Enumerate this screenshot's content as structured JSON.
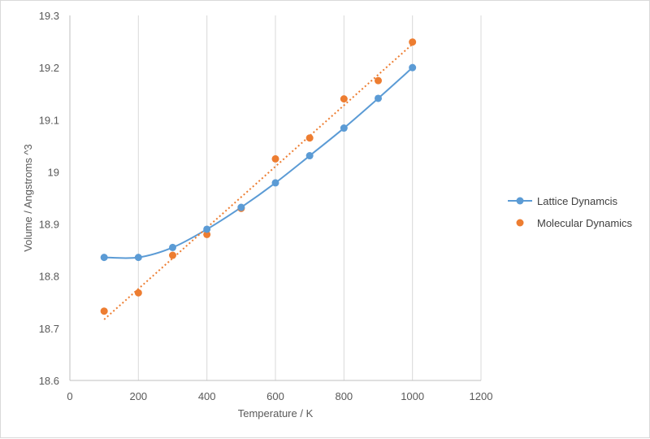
{
  "chart_data": {
    "type": "scatter",
    "title": "",
    "xlabel": "Temperature / K",
    "ylabel": "Volume / Angstroms ^3",
    "xlim": [
      0,
      1200
    ],
    "ylim": [
      18.6,
      19.3
    ],
    "x_ticks": [
      0,
      200,
      400,
      600,
      800,
      1000,
      1200
    ],
    "y_ticks": [
      18.6,
      18.7,
      18.8,
      18.9,
      19.0,
      19.1,
      19.2,
      19.3
    ],
    "x_tick_labels": [
      "0",
      "200",
      "400",
      "600",
      "800",
      "1000",
      "1200"
    ],
    "y_tick_labels": [
      "18.6",
      "18.7",
      "18.8",
      "18.9",
      "19",
      "19.1",
      "19.2",
      "19.3"
    ],
    "grid": "vertical",
    "legend_position": "right",
    "series": [
      {
        "name": "Lattice Dynamcis",
        "color": "#5B9BD5",
        "style": "smooth-line-with-markers",
        "x": [
          100,
          200,
          300,
          400,
          500,
          600,
          700,
          800,
          900,
          1000
        ],
        "y": [
          18.836,
          18.836,
          18.855,
          18.89,
          18.932,
          18.979,
          19.031,
          19.084,
          19.141,
          19.2
        ]
      },
      {
        "name": "Molecular Dynamics",
        "color": "#ED7D31",
        "style": "markers-with-linear-trendline",
        "x": [
          100,
          200,
          300,
          400,
          500,
          600,
          700,
          800,
          900,
          1000
        ],
        "y": [
          18.733,
          18.768,
          18.84,
          18.88,
          18.93,
          19.025,
          19.065,
          19.14,
          19.175,
          19.249
        ],
        "trendline": {
          "type": "linear",
          "x": [
            100,
            1000
          ],
          "y": [
            18.717,
            19.245
          ]
        }
      }
    ]
  }
}
